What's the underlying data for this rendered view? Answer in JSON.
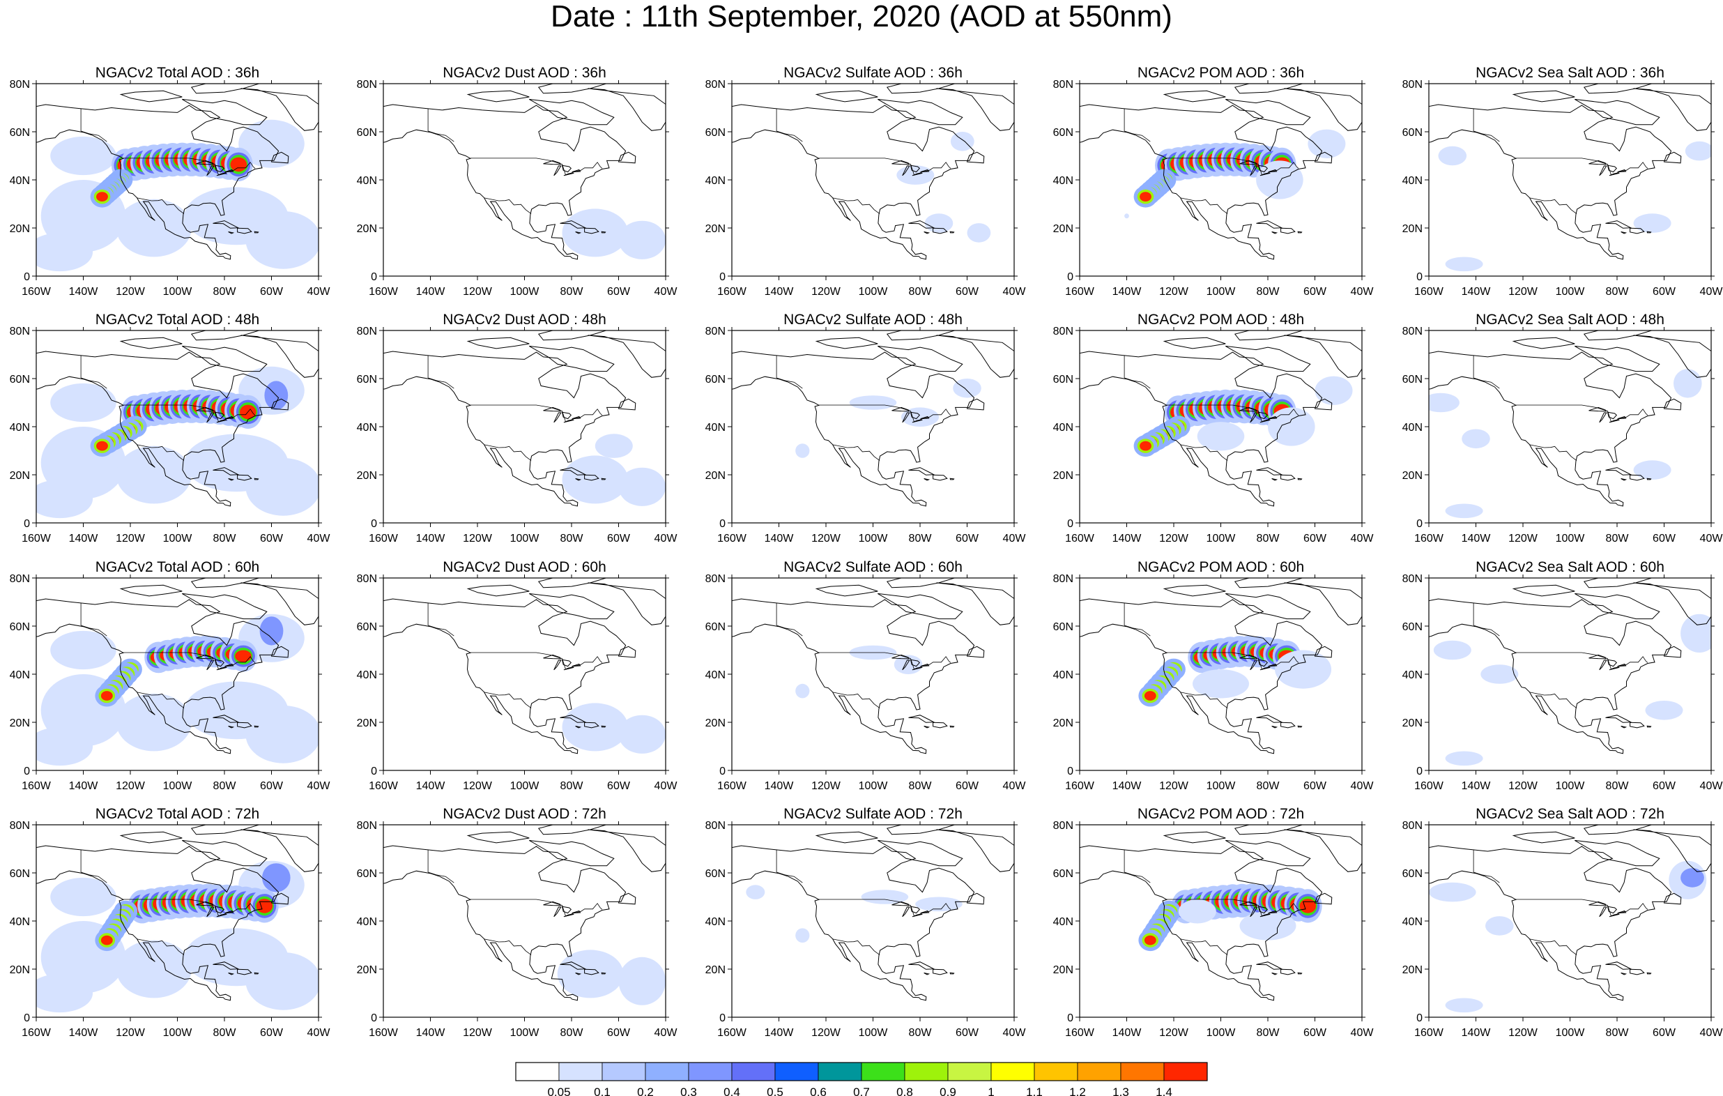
{
  "title": "Date : 11th September, 2020 (AOD at 550nm)",
  "row_hours": [
    "36h",
    "48h",
    "60h",
    "72h"
  ],
  "panels": [
    [
      "NGACv2 Total AOD : 36h",
      "NGACv2 Dust AOD : 36h",
      "NGACv2 Sulfate AOD : 36h",
      "NGACv2 POM AOD : 36h",
      "NGACv2 Sea Salt AOD : 36h"
    ],
    [
      "NGACv2 Total AOD : 48h",
      "NGACv2 Dust AOD : 48h",
      "NGACv2 Sulfate AOD : 48h",
      "NGACv2 POM AOD : 48h",
      "NGACv2 Sea Salt AOD : 48h"
    ],
    [
      "NGACv2 Total AOD : 60h",
      "NGACv2 Dust AOD : 60h",
      "NGACv2 Sulfate AOD : 60h",
      "NGACv2 POM AOD : 60h",
      "NGACv2 Sea Salt AOD : 60h"
    ],
    [
      "NGACv2 Total AOD : 72h",
      "NGACv2 Dust AOD : 72h",
      "NGACv2 Sulfate AOD : 72h",
      "NGACv2 POM AOD : 72h",
      "NGACv2 Sea Salt  AOD : 72h"
    ]
  ],
  "lon_ticks": [
    "160W",
    "140W",
    "120W",
    "100W",
    "80W",
    "60W",
    "40W"
  ],
  "lat_ticks": [
    "0",
    "20N",
    "40N",
    "60N",
    "80N"
  ],
  "colorbar": {
    "labels": [
      "0.05",
      "0.1",
      "0.2",
      "0.3",
      "0.4",
      "0.5",
      "0.6",
      "0.7",
      "0.8",
      "0.9",
      "1",
      "1.1",
      "1.2",
      "1.3",
      "1.4"
    ],
    "colors": [
      "#ffffff",
      "#d6e2ff",
      "#b5c9ff",
      "#8fb0ff",
      "#7f96ff",
      "#6370f8",
      "#0f5fff",
      "#00969b",
      "#3ce01a",
      "#9ef20b",
      "#c8f542",
      "#ffff00",
      "#ffc400",
      "#ffa200",
      "#ff7600",
      "#ff2700"
    ]
  },
  "colors": {
    "land_outline": "#000000",
    "background": "#ffffff"
  }
}
